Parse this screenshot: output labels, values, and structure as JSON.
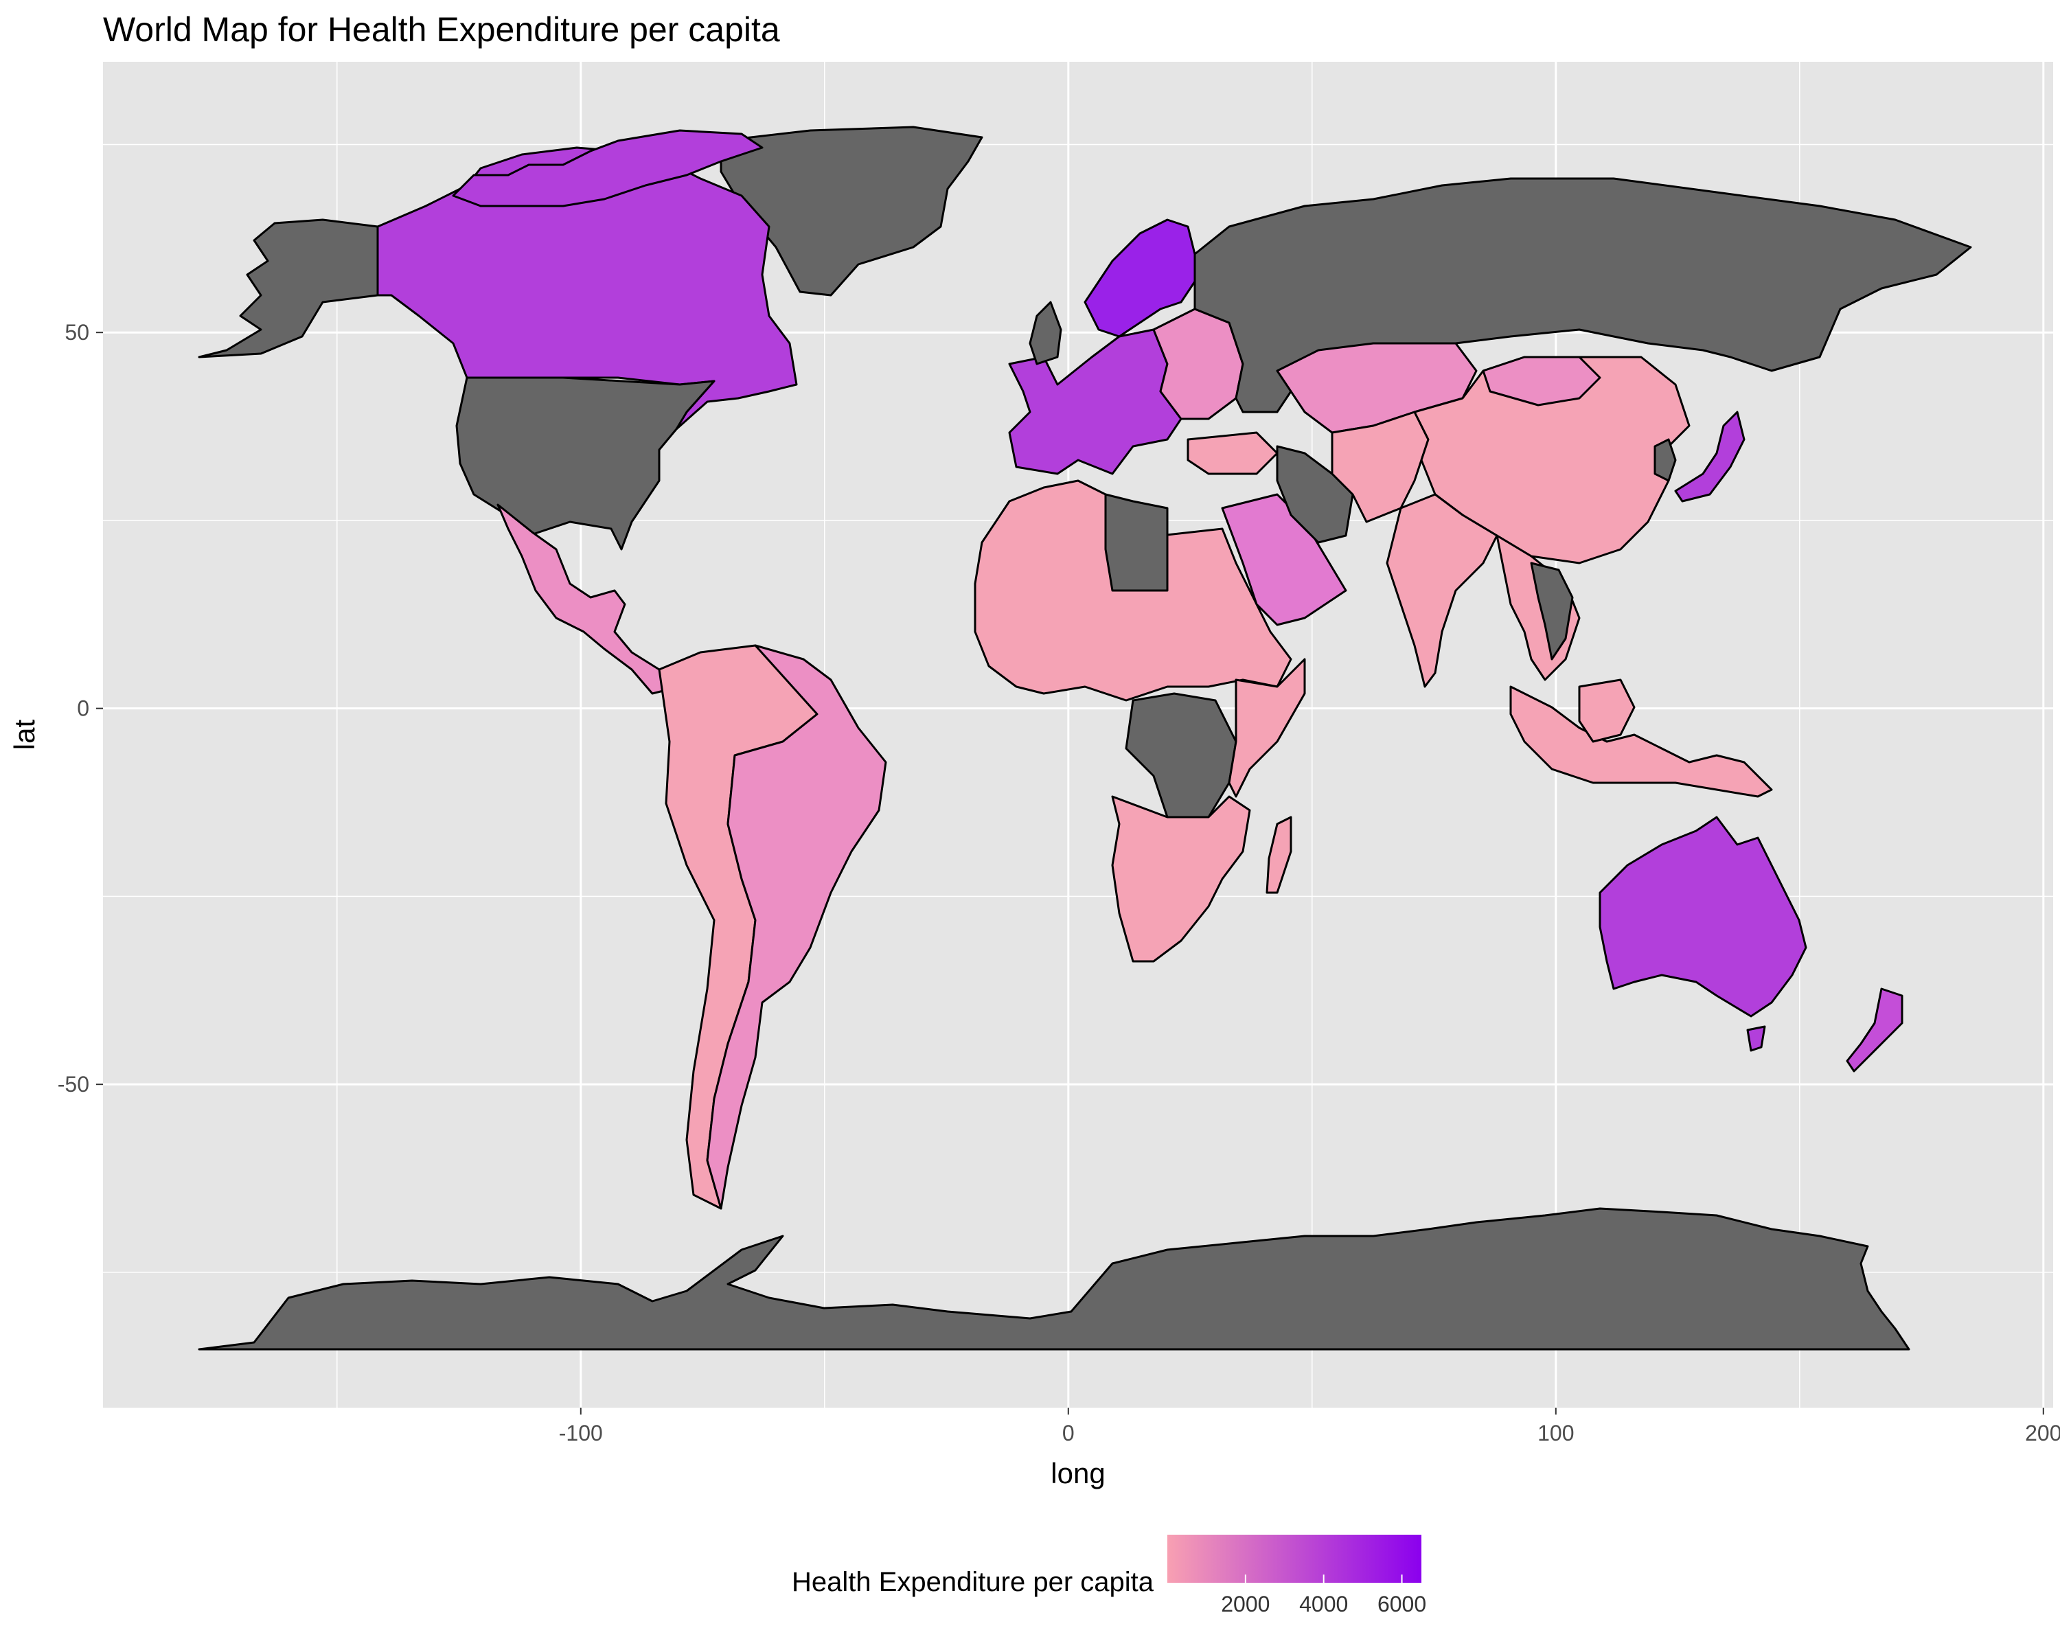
{
  "title": "World Map for Health Expenditure per capita",
  "panel": {
    "background": "#e5e5e5",
    "grid_color": "#ffffff"
  },
  "axes": {
    "xlabel": "long",
    "ylabel": "lat",
    "xlim": [
      -198,
      202
    ],
    "ylim": [
      -93,
      86
    ],
    "x_ticks": [
      -100,
      0,
      100,
      200
    ],
    "y_ticks": [
      -50,
      0,
      50
    ],
    "x_tick_labels": [
      "-100",
      "0",
      "100",
      "200"
    ],
    "y_tick_labels": [
      "-50",
      "0",
      "50"
    ],
    "x_minor": [
      -150,
      -50,
      50,
      150
    ],
    "y_minor": [
      -75,
      -25,
      25,
      75
    ]
  },
  "legend": {
    "title": "Health Expenditure per capita",
    "position": "bottom",
    "low_color": "#f8a0b2",
    "high_color": "#8b00ee",
    "min": 0,
    "max": 6500,
    "breaks": [
      2000,
      4000,
      6000
    ],
    "break_labels": [
      "2000",
      "4000",
      "6000"
    ]
  },
  "colors": {
    "missing": "#666666",
    "border": "#000000",
    "low": "#f5a3b5",
    "mid_low": "#ec8fc4",
    "mid": "#e27ad0",
    "mid_high": "#c44ed8",
    "high": "#b23fdb",
    "very_high": "#9a22e8"
  },
  "chart_data": {
    "type": "choropleth",
    "variable": "Health Expenditure per capita",
    "regions": [
      {
        "name": "Greenland",
        "value": null
      },
      {
        "name": "Alaska",
        "value": null
      },
      {
        "name": "Canada",
        "value": 4600
      },
      {
        "name": "United States",
        "value": null
      },
      {
        "name": "Mexico",
        "value": 1000
      },
      {
        "name": "Brazil",
        "value": 1300
      },
      {
        "name": "South America",
        "value": 1000
      },
      {
        "name": "North Africa",
        "value": 300
      },
      {
        "name": "Libya",
        "value": null
      },
      {
        "name": "Central Africa",
        "value": null
      },
      {
        "name": "Southern Africa",
        "value": 500
      },
      {
        "name": "Europe",
        "value": 5000
      },
      {
        "name": "Scandinavia",
        "value": 5500
      },
      {
        "name": "Russia",
        "value": null
      },
      {
        "name": "Kazakhstan",
        "value": 1000
      },
      {
        "name": "China",
        "value": 700
      },
      {
        "name": "India",
        "value": 200
      },
      {
        "name": "Iran",
        "value": null
      },
      {
        "name": "Saudi Arabia",
        "value": 2000
      },
      {
        "name": "Japan",
        "value": 4200
      },
      {
        "name": "Southeast Asia",
        "value": 400
      },
      {
        "name": "Indonesia",
        "value": 300
      },
      {
        "name": "Australia",
        "value": 4300
      },
      {
        "name": "New Zealand",
        "value": 3800
      },
      {
        "name": "Antarctica",
        "value": null
      }
    ]
  }
}
